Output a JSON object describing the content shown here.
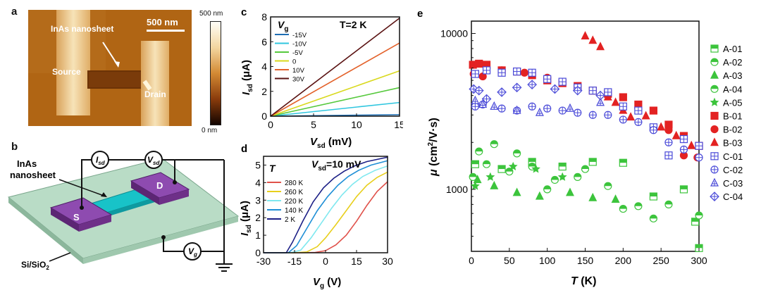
{
  "panel_a": {
    "label": "a",
    "scalebar_label": "500 nm",
    "nanosheet_label": "InAs nanosheet",
    "source_label": "Source",
    "drain_label": "Drain",
    "colorbar_max": "500 nm",
    "colorbar_min": "0 nm",
    "colors": {
      "dark": "#140500",
      "mid": "#c77a1f",
      "light": "#fff8e8"
    }
  },
  "panel_b": {
    "label": "b",
    "isd_label": "I",
    "isd_sub": "sd",
    "vsd_label": "V",
    "vsd_sub": "sd",
    "vg_label": "V",
    "vg_sub": "g",
    "nanosheet_line1": "InAs",
    "nanosheet_line2": "nanosheet",
    "s_label": "S",
    "d_label": "D",
    "substrate_label": "Si/SiO",
    "substrate_sub": "2",
    "colors": {
      "substrate": "#b9dcc6",
      "pad": "#7a3c96",
      "channel": "#18c3c8"
    }
  },
  "chart_data": [
    {
      "id": "c",
      "label": "c",
      "type": "line",
      "title": "T=2 K",
      "legend_title": "V",
      "legend_title_sub": "g",
      "xlabel": "V",
      "xlabel_sub": "sd",
      "xlabel_unit": " (mV)",
      "ylabel": "I",
      "ylabel_sub": "sd",
      "ylabel_unit": " (μA)",
      "xlim": [
        0,
        15
      ],
      "ylim": [
        0,
        8
      ],
      "xticks": [
        "0",
        "5",
        "10",
        "15"
      ],
      "yticks": [
        "0",
        "2",
        "4",
        "6",
        "8"
      ],
      "series": [
        {
          "name": "-15V",
          "color": "#1f6fb4",
          "x": [
            0,
            15
          ],
          "y": [
            0,
            0.12
          ]
        },
        {
          "name": "-10V",
          "color": "#2fc6df",
          "x": [
            0,
            15
          ],
          "y": [
            0,
            1.1
          ]
        },
        {
          "name": "-5V",
          "color": "#56c93d",
          "x": [
            0,
            15
          ],
          "y": [
            0,
            2.3
          ]
        },
        {
          "name": "0",
          "color": "#d9d91e",
          "x": [
            0,
            15
          ],
          "y": [
            0,
            3.65
          ]
        },
        {
          "name": "10V",
          "color": "#e3612a",
          "x": [
            0,
            15
          ],
          "y": [
            0,
            5.9
          ]
        },
        {
          "name": "30V",
          "color": "#5a1212",
          "x": [
            0,
            15
          ],
          "y": [
            0,
            7.9
          ]
        }
      ]
    },
    {
      "id": "d",
      "label": "d",
      "type": "line",
      "title": "V",
      "title_sub": "sd",
      "title_rest": "=10 mV",
      "legend_title": "T",
      "xlabel": "V",
      "xlabel_sub": "g",
      "xlabel_unit": " (V)",
      "ylabel": "I",
      "ylabel_sub": "sd",
      "ylabel_unit": " (μA)",
      "xlim": [
        -30,
        30
      ],
      "ylim": [
        0,
        5.5
      ],
      "xticks": [
        "-30",
        "-15",
        "0",
        "15",
        "30"
      ],
      "yticks": [
        "0",
        "1",
        "2",
        "3",
        "4",
        "5"
      ],
      "series": [
        {
          "name": "280 K",
          "color": "#e0514a",
          "x": [
            -30,
            -12,
            -5,
            0,
            5,
            10,
            15,
            20,
            25,
            30
          ],
          "y": [
            0,
            0,
            0.02,
            0.12,
            0.45,
            1.0,
            1.8,
            2.7,
            3.5,
            4.05
          ]
        },
        {
          "name": "260 K",
          "color": "#e8cf1c",
          "x": [
            -30,
            -15,
            -9,
            -4,
            0,
            5,
            10,
            15,
            20,
            25,
            30
          ],
          "y": [
            0,
            0,
            0.05,
            0.35,
            0.85,
            1.6,
            2.4,
            3.2,
            3.85,
            4.3,
            4.6
          ]
        },
        {
          "name": "220 K",
          "color": "#7fe8ef",
          "x": [
            -30,
            -17,
            -12,
            -7,
            -2,
            3,
            8,
            13,
            18,
            24,
            30
          ],
          "y": [
            0,
            0,
            0.15,
            0.85,
            1.7,
            2.55,
            3.3,
            3.9,
            4.35,
            4.7,
            4.95
          ]
        },
        {
          "name": "140 K",
          "color": "#1f8fd6",
          "x": [
            -30,
            -18,
            -14,
            -9,
            -4,
            1,
            6,
            11,
            16,
            22,
            30
          ],
          "y": [
            0,
            0,
            0.4,
            1.4,
            2.4,
            3.2,
            3.85,
            4.35,
            4.7,
            5.0,
            5.25
          ]
        },
        {
          "name": "2 K",
          "color": "#1c1f86",
          "x": [
            -30,
            -19,
            -16,
            -11,
            -6,
            -1,
            4,
            9,
            14,
            20,
            30
          ],
          "y": [
            0,
            0,
            0.6,
            1.8,
            2.9,
            3.7,
            4.25,
            4.65,
            4.95,
            5.2,
            5.45
          ]
        }
      ]
    },
    {
      "id": "e",
      "label": "e",
      "type": "scatter",
      "xlabel": "T",
      "xlabel_unit": " (K)",
      "ylabel": "μ",
      "ylabel_unit": " (cm",
      "ylabel_sup": "2",
      "ylabel_tail": "/V·s)",
      "xlim": [
        0,
        300
      ],
      "ylim": [
        400,
        12000
      ],
      "yscale": "log",
      "xticks": [
        "0",
        "50",
        "100",
        "150",
        "200",
        "250",
        "300"
      ],
      "yticks": [
        "1000",
        "10000"
      ],
      "series": [
        {
          "name": "A-01",
          "color": "#3cc43c",
          "marker": "square-half",
          "x": [
            5,
            40,
            80,
            120,
            160,
            200,
            240,
            280,
            295,
            300
          ],
          "y": [
            1450,
            1350,
            1500,
            1400,
            1500,
            1480,
            900,
            1000,
            620,
            420
          ]
        },
        {
          "name": "A-02",
          "color": "#3cc43c",
          "marker": "circle-half",
          "x": [
            10,
            30,
            60,
            100,
            140,
            180,
            220,
            260,
            300
          ],
          "y": [
            1750,
            1950,
            1700,
            1000,
            1200,
            1050,
            780,
            800,
            680
          ]
        },
        {
          "name": "A-03",
          "color": "#3cc43c",
          "marker": "triangle",
          "x": [
            8,
            30,
            60,
            90,
            130,
            160,
            190
          ],
          "y": [
            1150,
            1050,
            950,
            900,
            950,
            880,
            860
          ]
        },
        {
          "name": "A-04",
          "color": "#3cc43c",
          "marker": "circle-half",
          "x": [
            2,
            20,
            50,
            80,
            110,
            150,
            200,
            240
          ],
          "y": [
            1200,
            1450,
            1300,
            1400,
            1150,
            1350,
            750,
            650
          ]
        },
        {
          "name": "A-05",
          "color": "#3cc43c",
          "marker": "star",
          "x": [
            5,
            25,
            55,
            85,
            120
          ],
          "y": [
            1050,
            1200,
            1400,
            1350,
            1200
          ]
        },
        {
          "name": "B-01",
          "color": "#e32222",
          "marker": "square",
          "x": [
            2,
            10,
            20,
            40,
            60,
            80,
            100,
            120,
            140,
            160,
            180,
            200,
            220,
            240,
            260,
            280,
            300
          ],
          "y": [
            6300,
            6400,
            6300,
            5800,
            5700,
            5400,
            5000,
            4800,
            4600,
            4300,
            4100,
            3900,
            3500,
            3200,
            2600,
            2200,
            1900
          ]
        },
        {
          "name": "B-02",
          "color": "#e32222",
          "marker": "circle",
          "x": [
            3,
            15,
            40,
            70,
            100,
            140,
            180,
            220,
            260,
            280,
            298
          ],
          "y": [
            5500,
            5300,
            5800,
            5600,
            5200,
            4400,
            4100,
            3300,
            2400,
            1650,
            1600
          ]
        },
        {
          "name": "B-03",
          "color": "#e32222",
          "marker": "triangle",
          "x": [
            150,
            160,
            170,
            180,
            190,
            200,
            210,
            230,
            250,
            270,
            290
          ],
          "y": [
            9600,
            9000,
            8200,
            3900,
            3600,
            3200,
            2900,
            2950,
            2500,
            2200,
            1900
          ]
        },
        {
          "name": "C-01",
          "color": "#4a4ad8",
          "marker": "square-cross",
          "x": [
            5,
            20,
            40,
            60,
            80,
            100,
            120,
            140,
            160,
            180,
            200,
            220,
            240,
            260,
            280,
            300
          ],
          "y": [
            5500,
            5800,
            5600,
            5700,
            5600,
            5100,
            4900,
            4500,
            4300,
            4200,
            3400,
            3200,
            2500,
            1650,
            2100,
            1900
          ]
        },
        {
          "name": "C-02",
          "color": "#4a4ad8",
          "marker": "circle-cross",
          "x": [
            5,
            15,
            40,
            60,
            80,
            100,
            120,
            140,
            160,
            180,
            200,
            220,
            240,
            260,
            280,
            300
          ],
          "y": [
            3400,
            3500,
            3300,
            3200,
            3400,
            3300,
            3200,
            3100,
            3000,
            3000,
            2800,
            2700,
            2400,
            2000,
            1800,
            1600
          ]
        },
        {
          "name": "C-03",
          "color": "#4a4ad8",
          "marker": "triangle-cross",
          "x": [
            5,
            15,
            30,
            60,
            90,
            130,
            170
          ],
          "y": [
            3700,
            3500,
            3400,
            3200,
            3100,
            3300,
            3600
          ]
        },
        {
          "name": "C-04",
          "color": "#4a4ad8",
          "marker": "diamond-cross",
          "x": [
            3,
            10,
            20,
            40,
            60,
            80,
            110,
            140,
            170
          ],
          "y": [
            4400,
            4300,
            3800,
            4200,
            4500,
            4700,
            4400,
            4300,
            4000
          ]
        }
      ]
    }
  ]
}
